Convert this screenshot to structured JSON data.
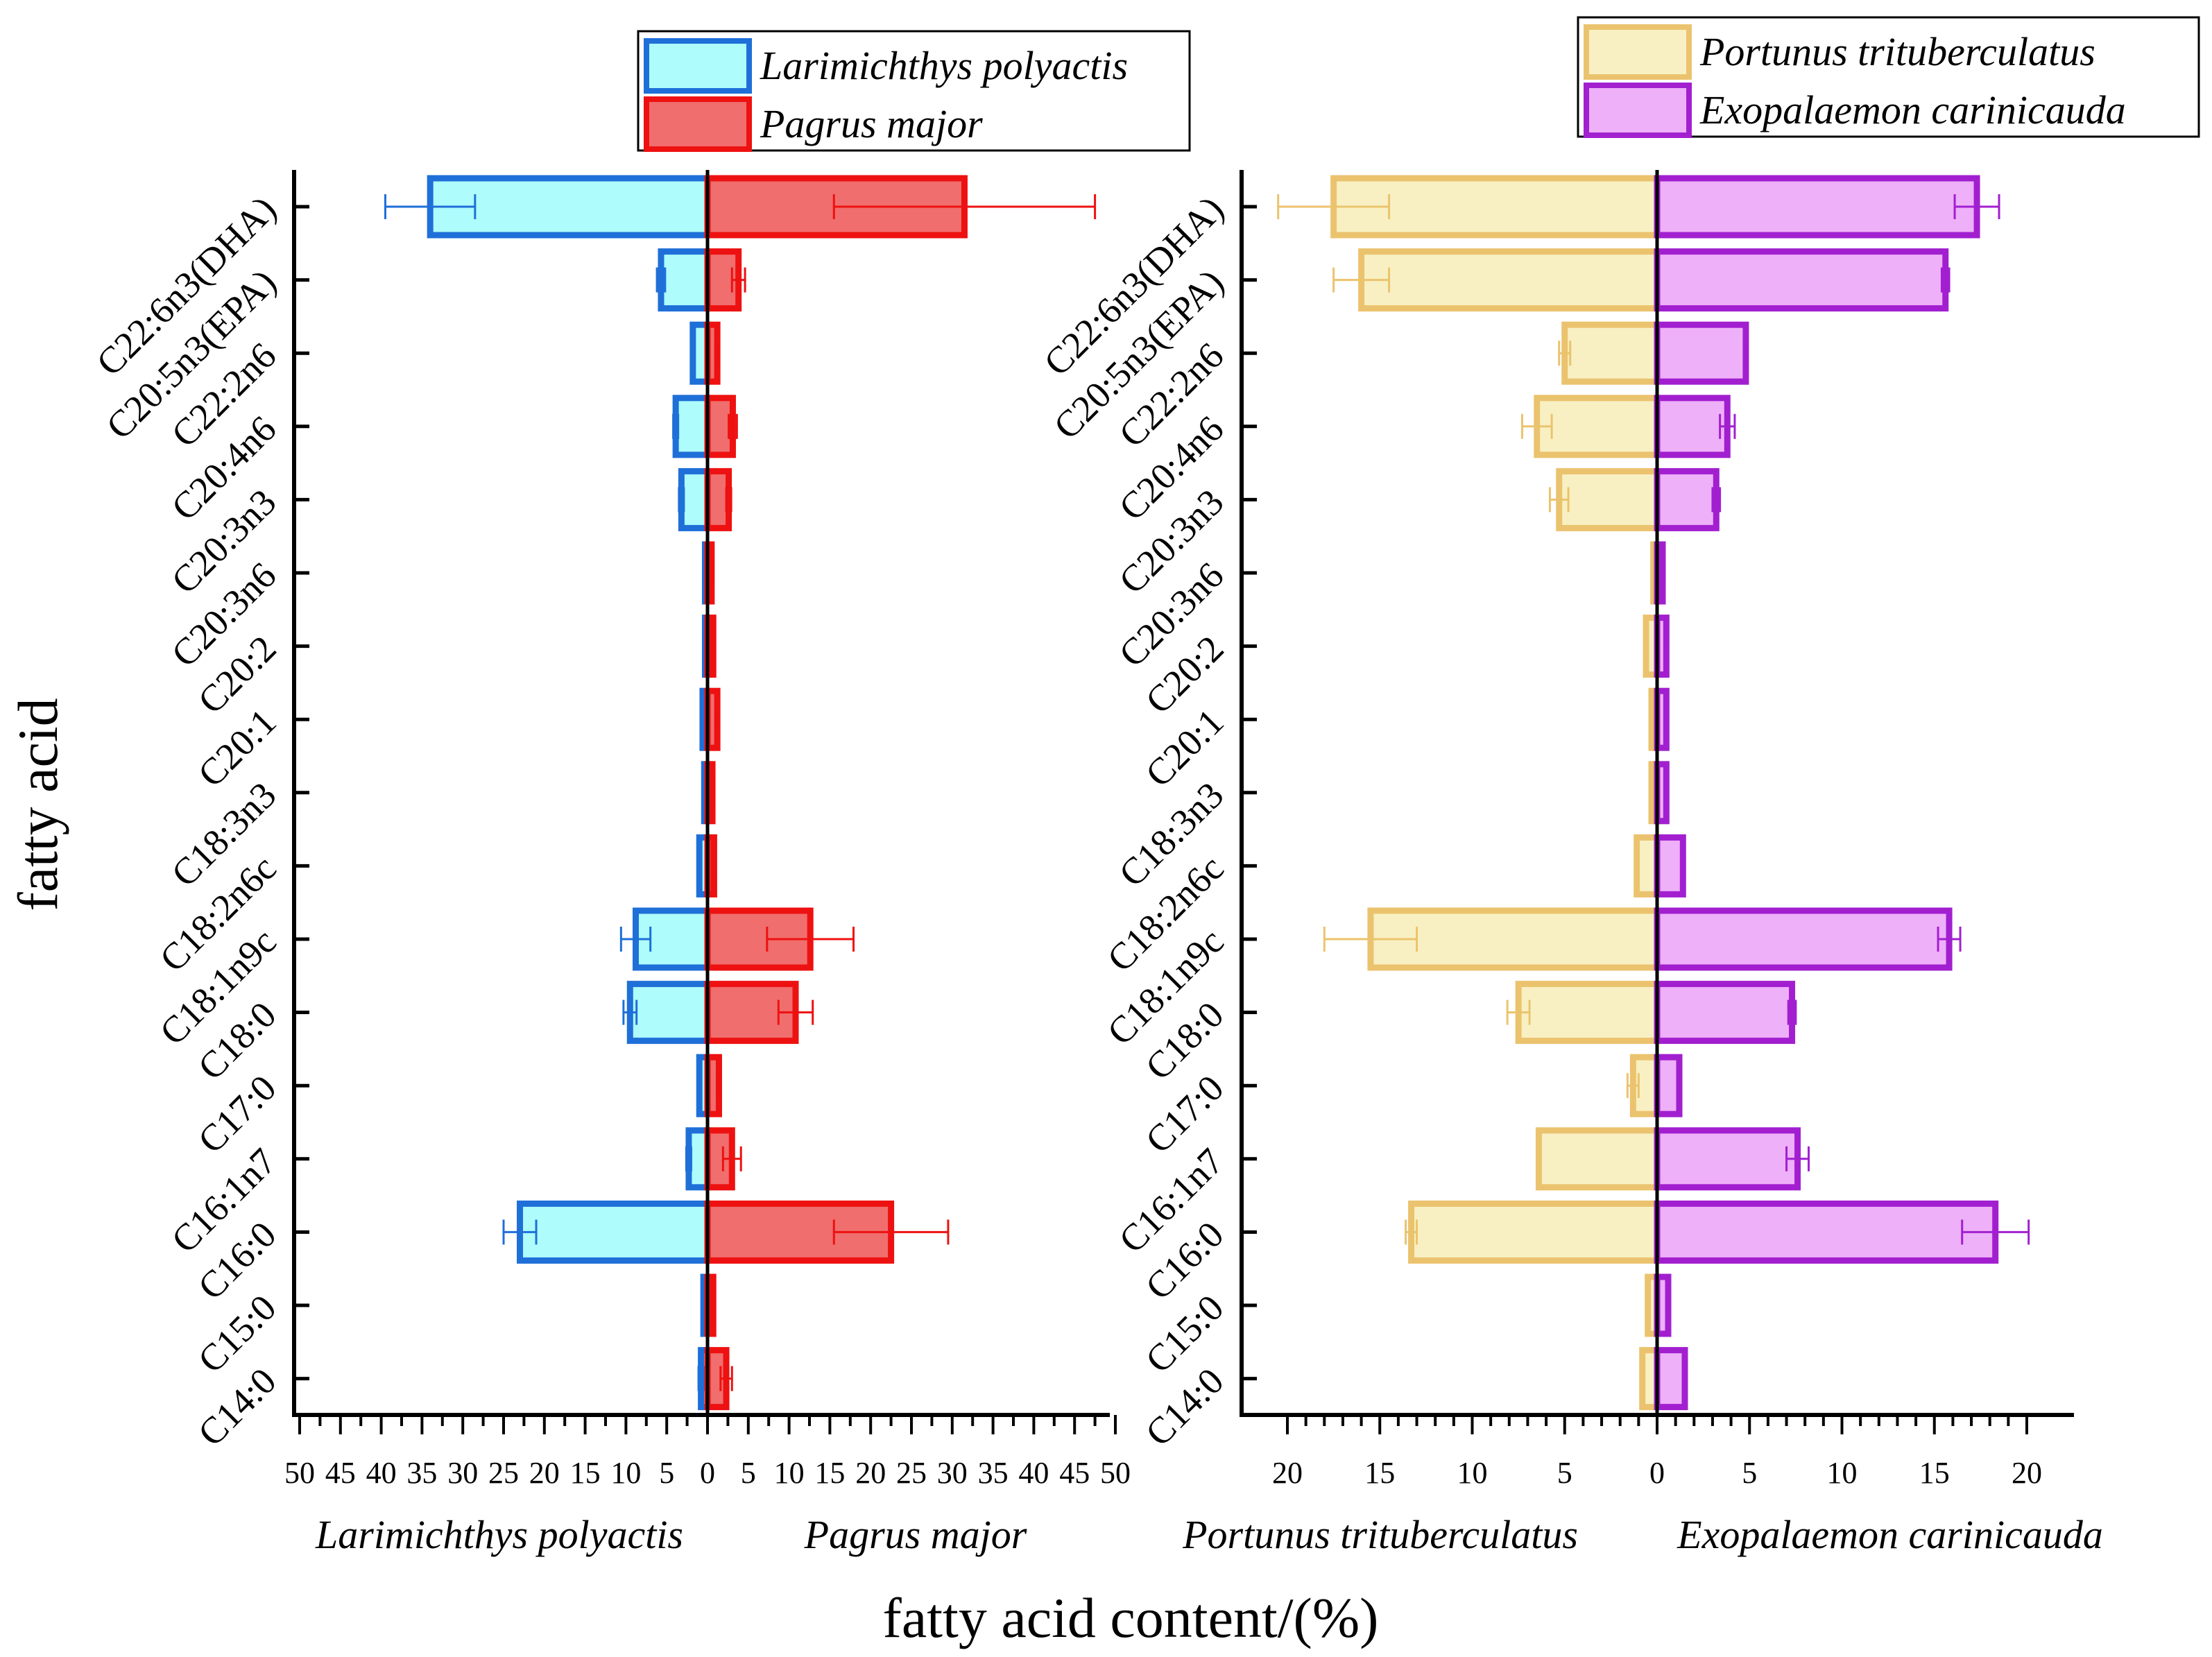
{
  "chart_data": {
    "type": "bar",
    "orientation": "horizontal",
    "xlabel": "fatty acid content/(%)",
    "ylabel": "fatty acid",
    "categories": [
      "C14:0",
      "C15:0",
      "C16:0",
      "C16:1n7",
      "C17:0",
      "C18:0",
      "C18:1n9c",
      "C18:2n6c",
      "C18:3n3",
      "C20:1",
      "C20:2",
      "C20:3n6",
      "C20:3n3",
      "C20:4n6",
      "C22:2n6",
      "C20:5n3(EPA)",
      "C22:6n3(DHA)"
    ],
    "panels": [
      {
        "xlim": [
          -50,
          50
        ],
        "ticks": [
          50,
          45,
          40,
          35,
          30,
          25,
          20,
          15,
          10,
          5,
          0,
          5,
          10,
          15,
          20,
          25,
          30,
          35,
          40,
          45,
          50
        ],
        "left_label": "Larimichthys polyactis",
        "right_label": "Pagrus major",
        "series": [
          {
            "name": "Larimichthys polyactis",
            "side": "left",
            "fill": "#aefcfc",
            "stroke": "#1f6fd8",
            "values": [
              0.8,
              0.5,
              23.0,
              2.3,
              1.0,
              9.5,
              8.8,
              1.0,
              0.4,
              0.6,
              0.3,
              0.3,
              3.2,
              3.9,
              1.8,
              5.7,
              34.0
            ],
            "errors": [
              0.3,
              0.1,
              2.0,
              0.3,
              0.1,
              0.8,
              1.8,
              0.1,
              0.1,
              0.1,
              0.1,
              0.1,
              0.3,
              0.3,
              0.2,
              0.5,
              5.5
            ]
          },
          {
            "name": "Pagrus major",
            "side": "right",
            "fill": "#f06e6e",
            "stroke": "#ee1111",
            "values": [
              2.3,
              0.7,
              22.5,
              3.0,
              1.4,
              10.8,
              12.6,
              0.8,
              0.6,
              1.2,
              0.7,
              0.5,
              2.6,
              3.1,
              1.2,
              3.8,
              31.5
            ],
            "errors": [
              0.7,
              0.1,
              7.0,
              1.1,
              0.2,
              2.1,
              5.3,
              0.1,
              0.1,
              0.1,
              0.1,
              0.1,
              0.3,
              0.5,
              0.2,
              0.8,
              16.0
            ]
          }
        ],
        "legend": {
          "position": "top-center",
          "entries": [
            "Larimichthys polyactis",
            "Pagrus major"
          ]
        }
      },
      {
        "xlim": [
          -22,
          22
        ],
        "ticks": [
          20,
          15,
          10,
          5,
          0,
          5,
          10,
          15,
          20
        ],
        "left_label": "Portunus trituberculatus",
        "right_label": "Exopalaemon carinicauda",
        "series": [
          {
            "name": "Portunus trituberculatus",
            "side": "left",
            "fill": "#f8f0c2",
            "stroke": "#ebc36e",
            "values": [
              0.8,
              0.5,
              13.3,
              6.4,
              1.3,
              7.5,
              15.5,
              1.1,
              0.3,
              0.3,
              0.6,
              0.2,
              5.3,
              6.5,
              5.0,
              16.0,
              17.5
            ],
            "errors": [
              0.1,
              0.1,
              0.3,
              0.1,
              0.3,
              0.6,
              2.5,
              0.1,
              0.1,
              0.1,
              0.1,
              0.1,
              0.5,
              0.8,
              0.3,
              1.5,
              3.0
            ]
          },
          {
            "name": "Exopalaemon carinicauda",
            "side": "right",
            "fill": "#eeb0f8",
            "stroke": "#a21fd0",
            "values": [
              1.5,
              0.6,
              18.3,
              7.6,
              1.2,
              7.3,
              15.8,
              1.4,
              0.5,
              0.5,
              0.5,
              0.3,
              3.2,
              3.8,
              4.8,
              15.6,
              17.3
            ],
            "errors": [
              0.1,
              0.1,
              1.8,
              0.6,
              0.1,
              0.2,
              0.6,
              0.1,
              0.1,
              0.1,
              0.1,
              0.1,
              0.2,
              0.4,
              0.1,
              0.2,
              1.2
            ]
          }
        ],
        "legend": {
          "position": "top-right",
          "entries": [
            "Portunus trituberculatus",
            "Exopalaemon carinicauda"
          ]
        }
      }
    ]
  }
}
